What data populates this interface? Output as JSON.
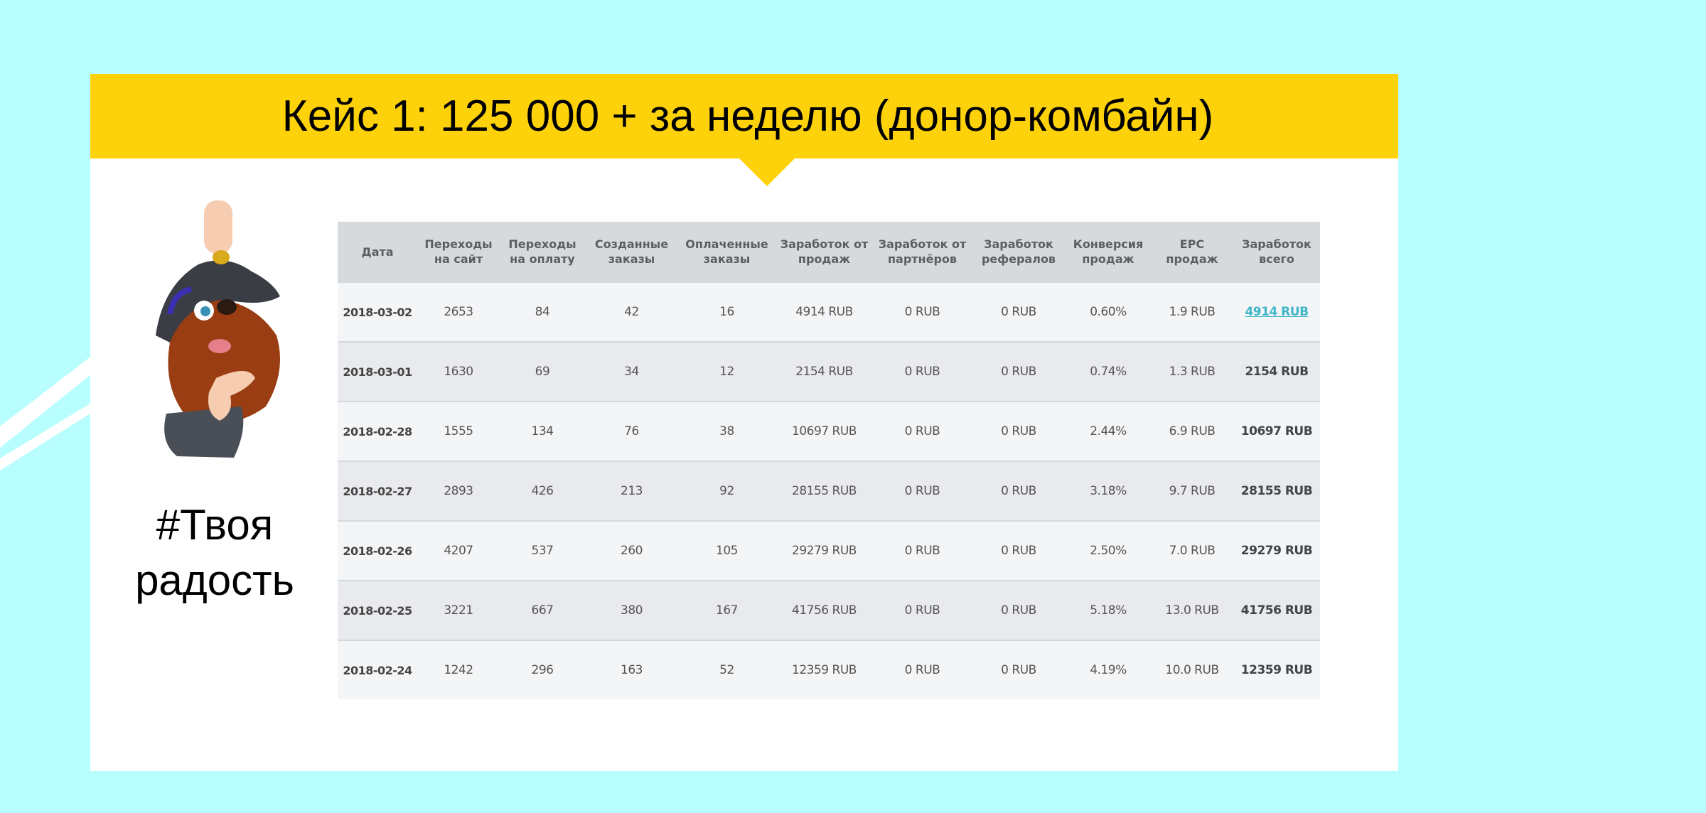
{
  "slide": {
    "title": "Кейс 1: 125 000 + за неделю (донор-комбайн)",
    "tagline_line1": "#Твоя",
    "tagline_line2": "радость",
    "colors": {
      "background": "#b9fefe",
      "banner": "#fed20a",
      "link": "#3fb6c7"
    },
    "illustration": "pirate-mascot-icon"
  },
  "table": {
    "headers": [
      "Дата",
      "Переходы на сайт",
      "Переходы на оплату",
      "Созданные заказы",
      "Оплаченные заказы",
      "Заработок от продаж",
      "Заработок от партнёров",
      "Заработок рефералов",
      "Конверсия продаж",
      "EPC продаж",
      "Заработок всего"
    ],
    "rows": [
      [
        "2018-03-02",
        "2653",
        "84",
        "42",
        "16",
        "4914 RUB",
        "0 RUB",
        "0 RUB",
        "0.60%",
        "1.9 RUB",
        "4914 RUB"
      ],
      [
        "2018-03-01",
        "1630",
        "69",
        "34",
        "12",
        "2154 RUB",
        "0 RUB",
        "0 RUB",
        "0.74%",
        "1.3 RUB",
        "2154 RUB"
      ],
      [
        "2018-02-28",
        "1555",
        "134",
        "76",
        "38",
        "10697 RUB",
        "0 RUB",
        "0 RUB",
        "2.44%",
        "6.9 RUB",
        "10697 RUB"
      ],
      [
        "2018-02-27",
        "2893",
        "426",
        "213",
        "92",
        "28155 RUB",
        "0 RUB",
        "0 RUB",
        "3.18%",
        "9.7 RUB",
        "28155 RUB"
      ],
      [
        "2018-02-26",
        "4207",
        "537",
        "260",
        "105",
        "29279 RUB",
        "0 RUB",
        "0 RUB",
        "2.50%",
        "7.0 RUB",
        "29279 RUB"
      ],
      [
        "2018-02-25",
        "3221",
        "667",
        "380",
        "167",
        "41756 RUB",
        "0 RUB",
        "0 RUB",
        "5.18%",
        "13.0 RUB",
        "41756 RUB"
      ],
      [
        "2018-02-24",
        "1242",
        "296",
        "163",
        "52",
        "12359 RUB",
        "0 RUB",
        "0 RUB",
        "4.19%",
        "10.0 RUB",
        "12359 RUB"
      ]
    ]
  }
}
